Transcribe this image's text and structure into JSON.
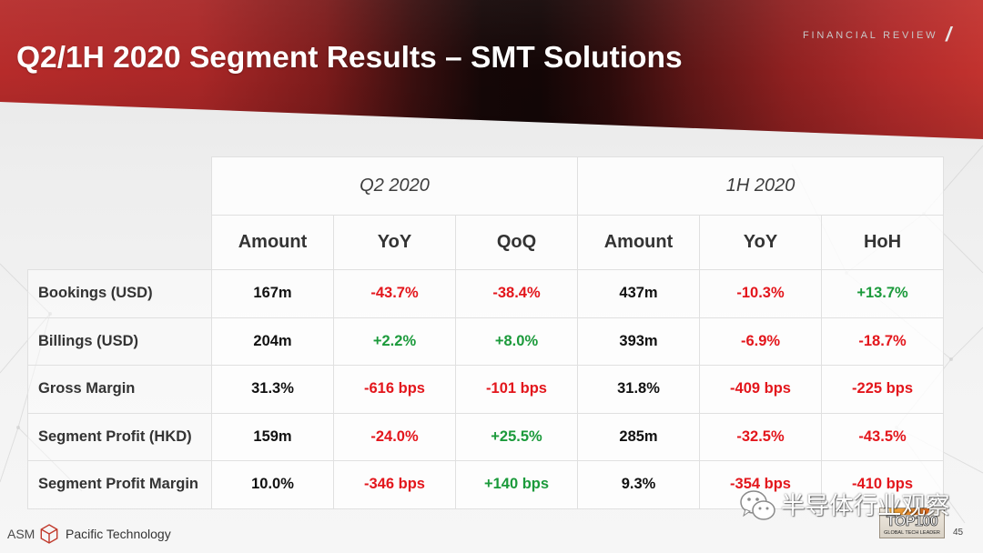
{
  "header": {
    "title": "Q2/1H 2020 Segment Results – SMT Solutions",
    "section_label": "FINANCIAL REVIEW",
    "section_mark": "/"
  },
  "table": {
    "groups": [
      "Q2 2020",
      "1H 2020"
    ],
    "columns": [
      "Amount",
      "YoY",
      "QoQ",
      "Amount",
      "YoY",
      "HoH"
    ],
    "rows": [
      {
        "label": "Bookings (USD)",
        "cells": [
          "167m",
          "-43.7%",
          "-38.4%",
          "437m",
          "-10.3%",
          "+13.7%"
        ]
      },
      {
        "label": "Billings (USD)",
        "cells": [
          "204m",
          "+2.2%",
          "+8.0%",
          "393m",
          "-6.9%",
          "-18.7%"
        ]
      },
      {
        "label": "Gross Margin",
        "cells": [
          "31.3%",
          "-616 bps",
          "-101 bps",
          "31.8%",
          "-409 bps",
          "-225 bps"
        ]
      },
      {
        "label": "Segment Profit (HKD)",
        "cells": [
          "159m",
          "-24.0%",
          "+25.5%",
          "285m",
          "-32.5%",
          "-43.5%"
        ]
      },
      {
        "label": "Segment Profit Margin",
        "cells": [
          "10.0%",
          "-346 bps",
          "+140 bps",
          "9.3%",
          "-354 bps",
          "-410 bps"
        ]
      }
    ]
  },
  "colors": {
    "brand_red": "#b62b2a",
    "banner_dark": "#130606",
    "negative": "#e3161c",
    "positive": "#1b9a3b",
    "neutral": "#111111"
  },
  "footer": {
    "logo_text": "ASM",
    "company_name": "Pacific Technology",
    "watermark_text": "半导体行业观察",
    "badge_title": "TOP100",
    "badge_subtitle": "GLOBAL TECH LEADER",
    "page_number": "45"
  },
  "icons": {
    "logo": "cube-icon",
    "watermark": "wechat-icon"
  }
}
